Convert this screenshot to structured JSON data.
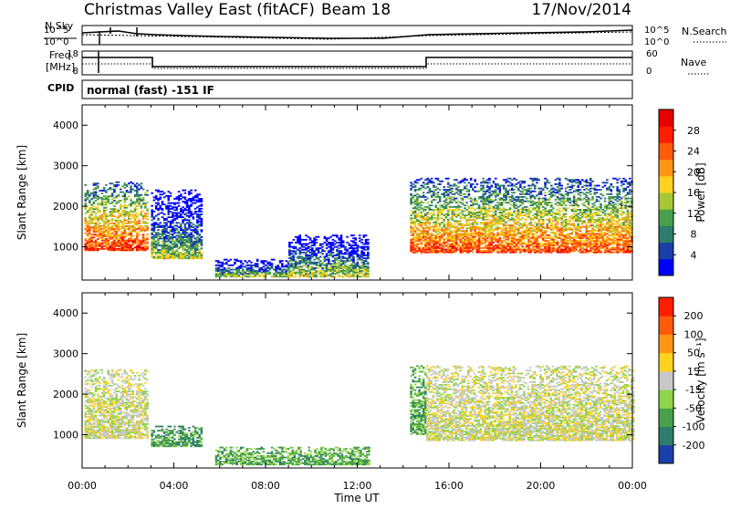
{
  "header": {
    "title": "Christmas Valley East (fitACF)",
    "beam": "Beam 18",
    "date": "17/Nov/2014"
  },
  "noise_panel": {
    "left_label": "N.Sky",
    "right_label": "N.Search",
    "ticks": [
      "10^5",
      "10^0"
    ]
  },
  "freq_panel": {
    "left_label_1": "Freq.",
    "left_label_2": "[MHz]",
    "left_ticks": [
      "18",
      "8"
    ],
    "right_label": "Nave",
    "right_ticks": [
      "60",
      "0"
    ]
  },
  "cpid": {
    "label": "CPID",
    "text": "normal (fast)  -151 IF"
  },
  "chart_data": [
    {
      "type": "heatmap",
      "title": "",
      "xlabel": "Time UT",
      "ylabel": "Slant Range [km]",
      "x_ticks": [
        "00:00",
        "04:00",
        "08:00",
        "12:00",
        "16:00",
        "20:00",
        "00:00"
      ],
      "y_ticks": [
        "1000",
        "2000",
        "3000",
        "4000"
      ],
      "colorbar_label": "Power [dB]",
      "colorbar_ticks": [
        "4",
        "8",
        "12",
        "16",
        "20",
        "24",
        "28"
      ],
      "colorbar_colors": [
        "#0000ff",
        "#1a3fa8",
        "#2e7d6a",
        "#48a04a",
        "#a8c832",
        "#ffd21e",
        "#ff9614",
        "#ff5a0a",
        "#ff1e00",
        "#e60000"
      ],
      "regions": [
        {
          "t0": 0.1,
          "t1": 2.8,
          "r0": 900,
          "r1": 2600,
          "level": 0.85
        },
        {
          "t0": 3.0,
          "t1": 5.2,
          "r0": 700,
          "r1": 2400,
          "level": 0.45
        },
        {
          "t0": 5.8,
          "t1": 9.0,
          "r0": 250,
          "r1": 700,
          "level": 0.45
        },
        {
          "t0": 9.0,
          "t1": 12.5,
          "r0": 250,
          "r1": 1300,
          "level": 0.5
        },
        {
          "t0": 14.3,
          "t1": 24.0,
          "r0": 850,
          "r1": 2700,
          "level": 0.8
        }
      ]
    },
    {
      "type": "heatmap",
      "title": "",
      "xlabel": "Time UT",
      "ylabel": "Slant Range [km]",
      "x_ticks": [
        "00:00",
        "04:00",
        "08:00",
        "12:00",
        "16:00",
        "20:00",
        "00:00"
      ],
      "y_ticks": [
        "1000",
        "2000",
        "3000",
        "4000"
      ],
      "colorbar_label": "Velocity [m s⁻¹]",
      "colorbar_ticks": [
        "200",
        "100",
        "50",
        "15",
        "-15",
        "-50",
        "-100",
        "-200"
      ],
      "colorbar_colors": [
        "#1a3fa8",
        "#2e7d6a",
        "#48a04a",
        "#8fd44a",
        "#c8c8c8",
        "#ffd21e",
        "#ff9614",
        "#ff5a0a",
        "#ff1e00"
      ],
      "regions": [
        {
          "t0": 0.1,
          "t1": 2.8,
          "r0": 900,
          "r1": 2600,
          "level": 0.5
        },
        {
          "t0": 3.0,
          "t1": 5.2,
          "r0": 700,
          "r1": 1200,
          "level": 0.25
        },
        {
          "t0": 5.8,
          "t1": 12.5,
          "r0": 250,
          "r1": 700,
          "level": 0.3
        },
        {
          "t0": 14.3,
          "t1": 15.0,
          "r0": 1000,
          "r1": 2700,
          "level": 0.3
        },
        {
          "t0": 15.0,
          "t1": 24.0,
          "r0": 850,
          "r1": 2700,
          "level": 0.5
        }
      ]
    }
  ]
}
